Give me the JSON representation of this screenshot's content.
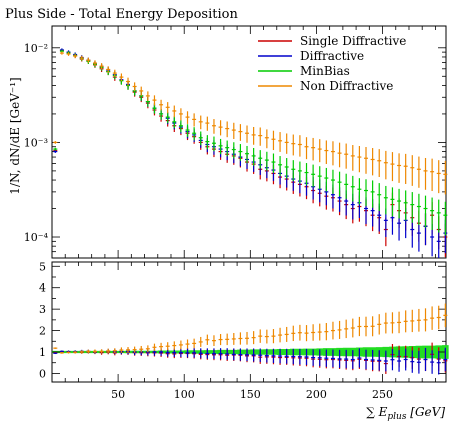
{
  "chart_data": [
    {
      "panel": "main",
      "type": "scatter",
      "title": "Plus Side - Total Energy Deposition",
      "ylabel": "1/N, dN/dE [GeV⁻¹]",
      "xlabel": "",
      "yscale": "log",
      "xlim": [
        0,
        298
      ],
      "ylim": [
        6e-05,
        0.017
      ],
      "y_ticks": [
        {
          "value": 0.0001,
          "label": "10⁻⁴"
        },
        {
          "value": 0.001,
          "label": "10⁻³"
        },
        {
          "value": 0.01,
          "label": "10⁻²"
        }
      ],
      "legend_position": "top-right",
      "bin_width": 5,
      "x": [
        2.5,
        7.5,
        12.5,
        17.5,
        22.5,
        27.5,
        32.5,
        37.5,
        42.5,
        47.5,
        52.5,
        57.5,
        62.5,
        67.5,
        72.5,
        77.5,
        82.5,
        87.5,
        92.5,
        97.5,
        102.5,
        107.5,
        112.5,
        117.5,
        122.5,
        127.5,
        132.5,
        137.5,
        142.5,
        147.5,
        152.5,
        157.5,
        162.5,
        167.5,
        172.5,
        177.5,
        182.5,
        187.5,
        192.5,
        197.5,
        202.5,
        207.5,
        212.5,
        217.5,
        222.5,
        227.5,
        232.5,
        237.5,
        242.5,
        247.5,
        252.5,
        257.5,
        262.5,
        267.5,
        272.5,
        277.5,
        282.5,
        287.5,
        292.5,
        297.5
      ],
      "series": [
        {
          "name": "Single Diffractive",
          "color": "#cc0000",
          "values": [
            0.00082,
            0.0094,
            0.0089,
            0.0082,
            0.0076,
            0.0073,
            0.0066,
            0.006,
            0.0056,
            0.0049,
            0.0045,
            0.004,
            0.0034,
            0.003,
            0.0026,
            0.0022,
            0.0019,
            0.0017,
            0.0015,
            0.0014,
            0.00125,
            0.00115,
            0.001,
            0.0009,
            0.00085,
            0.0008,
            0.00075,
            0.00072,
            0.00068,
            0.00062,
            0.00059,
            0.00052,
            0.0005,
            0.00047,
            0.00043,
            0.00041,
            0.00038,
            0.00036,
            0.00034,
            0.00031,
            0.00029,
            0.00027,
            0.00026,
            0.00024,
            0.00022,
            0.0002,
            0.00021,
            0.00019,
            0.00017,
            0.00016,
            0.00012,
            0.00022,
            0.00019,
            0.00018,
            0.00016,
            0.00014,
            0.00013,
            0.00017,
            0.00012,
            0.0001
          ]
        },
        {
          "name": "Diffractive",
          "color": "#0000cc",
          "values": [
            0.0008,
            0.0095,
            0.009,
            0.0085,
            0.0079,
            0.0074,
            0.0068,
            0.0063,
            0.0058,
            0.0052,
            0.0046,
            0.0041,
            0.0035,
            0.0031,
            0.0027,
            0.0023,
            0.002,
            0.0018,
            0.0016,
            0.00145,
            0.0013,
            0.0012,
            0.00105,
            0.00095,
            0.0009,
            0.00085,
            0.0008,
            0.00075,
            0.0007,
            0.00066,
            0.00062,
            0.00058,
            0.00054,
            0.00051,
            0.00047,
            0.00044,
            0.00041,
            0.00039,
            0.00037,
            0.00034,
            0.00032,
            0.0003,
            0.00028,
            0.00026,
            0.00024,
            0.00022,
            0.00023,
            0.0002,
            0.00019,
            0.00017,
            0.00015,
            0.00016,
            0.00014,
            0.00015,
            0.00012,
            0.00011,
            0.00013,
            0.0001,
            9e-05,
            0.00011
          ]
        },
        {
          "name": "MinBias",
          "color": "#00cc00",
          "values": [
            0.00085,
            0.0092,
            0.0088,
            0.0083,
            0.0077,
            0.0072,
            0.0067,
            0.0062,
            0.0056,
            0.0051,
            0.0045,
            0.004,
            0.0035,
            0.0031,
            0.0027,
            0.0023,
            0.002,
            0.00185,
            0.00165,
            0.0015,
            0.00135,
            0.00125,
            0.00112,
            0.00102,
            0.00098,
            0.00092,
            0.00088,
            0.00084,
            0.0008,
            0.00076,
            0.00072,
            0.00068,
            0.00065,
            0.00062,
            0.00058,
            0.00055,
            0.00052,
            0.0005,
            0.00048,
            0.00046,
            0.00044,
            0.00042,
            0.0004,
            0.00038,
            0.00036,
            0.00034,
            0.00032,
            0.00031,
            0.0003,
            0.00028,
            0.00026,
            0.00025,
            0.00024,
            0.00023,
            0.00022,
            0.00021,
            0.0002,
            0.00019,
            0.00018,
            0.00017
          ]
        },
        {
          "name": "Non Diffractive",
          "color": "#ee8800",
          "values": [
            0.001,
            0.0088,
            0.0086,
            0.0082,
            0.0078,
            0.0074,
            0.0069,
            0.0064,
            0.0059,
            0.0054,
            0.0049,
            0.0044,
            0.0039,
            0.0035,
            0.0031,
            0.0028,
            0.0025,
            0.00235,
            0.00215,
            0.002,
            0.00185,
            0.00175,
            0.00165,
            0.0016,
            0.0015,
            0.00145,
            0.0014,
            0.00135,
            0.0013,
            0.00125,
            0.0012,
            0.00118,
            0.00112,
            0.00108,
            0.00104,
            0.001,
            0.00097,
            0.00095,
            0.0009,
            0.00088,
            0.00085,
            0.00082,
            0.0008,
            0.00077,
            0.00075,
            0.00072,
            0.0007,
            0.00068,
            0.00066,
            0.00064,
            0.00061,
            0.00059,
            0.00057,
            0.00056,
            0.00054,
            0.00052,
            0.0005,
            0.00049,
            0.00047,
            0.00046
          ]
        }
      ],
      "legend": [
        "Single Diffractive",
        "Diffractive",
        "MinBias",
        "Non Diffractive"
      ]
    },
    {
      "panel": "ratio",
      "type": "scatter",
      "xlabel": "∑E_plus [GeV]",
      "xlabel_parts": {
        "symbol": "∑",
        "var": "E",
        "sub": "plus",
        "unit": "[GeV]"
      },
      "xlim": [
        0,
        298
      ],
      "ylim": [
        -0.4,
        5.2
      ],
      "x_ticks": [
        50,
        100,
        150,
        200,
        250
      ],
      "y_ticks": [
        0,
        1,
        2,
        3,
        4,
        5
      ],
      "band": {
        "color": "#22dd22",
        "center": 1.0,
        "half_width": [
          0.05,
          0.05,
          0.05,
          0.05,
          0.05,
          0.05,
          0.05,
          0.05,
          0.05,
          0.05,
          0.05,
          0.06,
          0.06,
          0.06,
          0.06,
          0.06,
          0.07,
          0.07,
          0.07,
          0.07,
          0.08,
          0.08,
          0.08,
          0.09,
          0.09,
          0.1,
          0.1,
          0.1,
          0.11,
          0.11,
          0.12,
          0.12,
          0.13,
          0.13,
          0.14,
          0.14,
          0.15,
          0.15,
          0.16,
          0.16,
          0.17,
          0.18,
          0.18,
          0.19,
          0.2,
          0.2,
          0.21,
          0.22,
          0.22,
          0.23,
          0.24,
          0.25,
          0.26,
          0.27,
          0.28,
          0.29,
          0.3,
          0.3,
          0.31,
          0.32
        ]
      },
      "x": [
        2.5,
        7.5,
        12.5,
        17.5,
        22.5,
        27.5,
        32.5,
        37.5,
        42.5,
        47.5,
        52.5,
        57.5,
        62.5,
        67.5,
        72.5,
        77.5,
        82.5,
        87.5,
        92.5,
        97.5,
        102.5,
        107.5,
        112.5,
        117.5,
        122.5,
        127.5,
        132.5,
        137.5,
        142.5,
        147.5,
        152.5,
        157.5,
        162.5,
        167.5,
        172.5,
        177.5,
        182.5,
        187.5,
        192.5,
        197.5,
        202.5,
        207.5,
        212.5,
        217.5,
        222.5,
        227.5,
        232.5,
        237.5,
        242.5,
        247.5,
        252.5,
        257.5,
        262.5,
        267.5,
        272.5,
        277.5,
        282.5,
        287.5,
        292.5,
        297.5
      ],
      "series": [
        {
          "name": "Single Diffractive",
          "color": "#cc0000",
          "values": [
            0.96,
            1.02,
            1.01,
            0.99,
            0.99,
            1.01,
            0.99,
            0.97,
            1.0,
            0.96,
            1.0,
            1.0,
            0.97,
            0.97,
            0.96,
            0.96,
            0.95,
            0.92,
            0.91,
            0.93,
            0.93,
            0.92,
            0.89,
            0.88,
            0.87,
            0.87,
            0.85,
            0.86,
            0.85,
            0.82,
            0.82,
            0.76,
            0.77,
            0.76,
            0.74,
            0.75,
            0.73,
            0.72,
            0.71,
            0.67,
            0.66,
            0.64,
            0.65,
            0.63,
            0.61,
            0.59,
            0.66,
            0.61,
            0.57,
            0.57,
            0.46,
            0.88,
            0.79,
            0.78,
            0.73,
            0.67,
            0.65,
            0.89,
            0.67,
            0.59
          ]
        },
        {
          "name": "Diffractive",
          "color": "#0000cc",
          "values": [
            0.94,
            1.03,
            1.02,
            1.02,
            1.03,
            1.03,
            1.01,
            1.02,
            1.04,
            1.02,
            1.02,
            1.03,
            1.0,
            1.0,
            1.0,
            1.0,
            1.0,
            0.97,
            0.97,
            0.97,
            0.96,
            0.96,
            0.94,
            0.93,
            0.92,
            0.92,
            0.91,
            0.89,
            0.88,
            0.87,
            0.86,
            0.85,
            0.83,
            0.82,
            0.81,
            0.8,
            0.79,
            0.78,
            0.77,
            0.74,
            0.73,
            0.71,
            0.7,
            0.68,
            0.67,
            0.65,
            0.72,
            0.65,
            0.63,
            0.61,
            0.58,
            0.64,
            0.58,
            0.65,
            0.55,
            0.52,
            0.65,
            0.53,
            0.5,
            0.65
          ]
        },
        {
          "name": "Non Diffractive",
          "color": "#ee8800",
          "values": [
            1.18,
            0.96,
            0.98,
            0.99,
            1.01,
            1.03,
            1.03,
            1.03,
            1.05,
            1.06,
            1.09,
            1.1,
            1.11,
            1.13,
            1.15,
            1.22,
            1.25,
            1.27,
            1.3,
            1.33,
            1.37,
            1.4,
            1.47,
            1.57,
            1.53,
            1.58,
            1.59,
            1.61,
            1.63,
            1.64,
            1.67,
            1.74,
            1.72,
            1.74,
            1.79,
            1.82,
            1.87,
            1.9,
            1.88,
            1.91,
            1.93,
            1.95,
            2.0,
            2.03,
            2.08,
            2.12,
            2.19,
            2.19,
            2.2,
            2.29,
            2.35,
            2.36,
            2.38,
            2.43,
            2.45,
            2.48,
            2.5,
            2.58,
            2.61,
            2.71
          ]
        }
      ]
    }
  ]
}
